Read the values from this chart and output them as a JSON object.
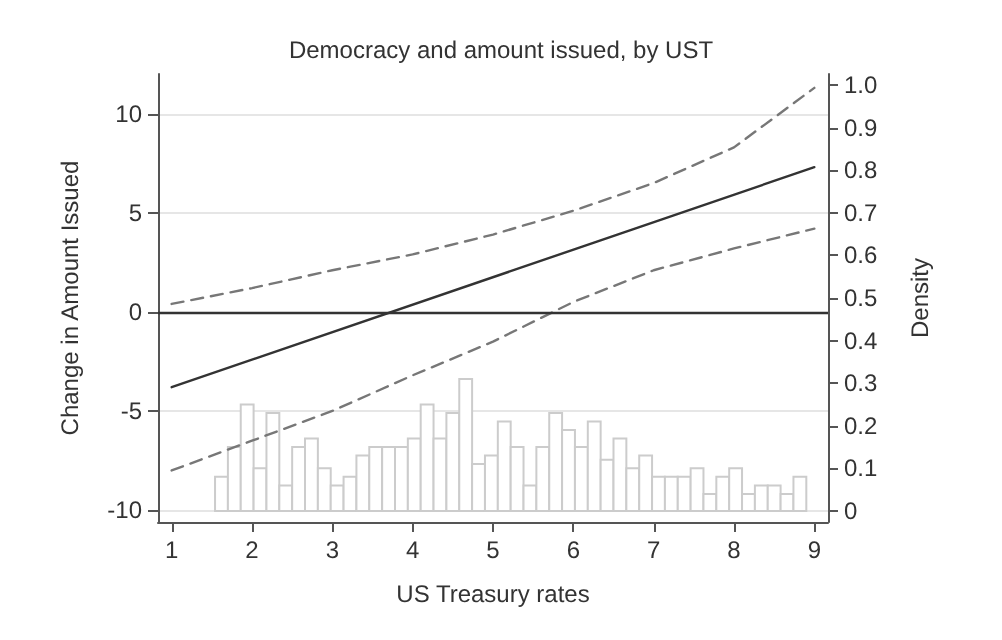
{
  "chart_data": {
    "type": "line",
    "title": "Democracy and amount issued, by UST",
    "xlabel": "US Treasury rates",
    "ylabel": "Change in Amount Issued",
    "y2label": "Density",
    "xlim": [
      0.83,
      9.17
    ],
    "xticks": [
      1,
      2,
      3,
      4,
      5,
      6,
      7,
      8,
      9
    ],
    "ylim": [
      -10.6,
      12
    ],
    "yticks": [
      -10,
      -5,
      0,
      5,
      10
    ],
    "y2lim": [
      -0.026,
      1.026
    ],
    "y2ticks": [
      0,
      0.1,
      0.2,
      0.3,
      0.4,
      0.5,
      0.6,
      0.7,
      0.8,
      0.9,
      {
        "value": 1,
        "label": "1.0"
      }
    ],
    "grid": "y",
    "marker": "none",
    "ref_lines": [
      {
        "axis": "y",
        "value": 0,
        "color": "#333333"
      }
    ],
    "series": [
      {
        "type": "histogram",
        "axis": "y2",
        "color": "#cccccc",
        "bins": [
          1.54,
          1.7,
          1.86,
          2.02,
          2.18,
          2.34,
          2.5,
          2.66,
          2.82,
          2.98,
          3.14,
          3.3,
          3.46,
          3.62,
          3.78,
          3.94,
          4.1,
          4.26,
          4.42,
          4.58,
          4.74,
          4.9,
          5.06,
          5.22,
          5.38,
          5.54,
          5.7,
          5.86,
          6.02,
          6.18,
          6.34,
          6.5,
          6.66,
          6.82,
          6.98,
          7.14,
          7.3,
          7.46,
          7.62,
          7.78,
          7.94,
          8.1,
          8.26,
          8.42,
          8.58,
          8.74,
          8.9
        ],
        "values": [
          0.08,
          0.15,
          0.25,
          0.1,
          0.23,
          0.06,
          0.15,
          0.17,
          0.1,
          0.06,
          0.08,
          0.13,
          0.15,
          0.15,
          0.15,
          0.17,
          0.25,
          0.17,
          0.23,
          0.31,
          0.11,
          0.13,
          0.21,
          0.15,
          0.06,
          0.15,
          0.23,
          0.19,
          0.15,
          0.21,
          0.12,
          0.17,
          0.1,
          0.13,
          0.08,
          0.08,
          0.08,
          0.1,
          0.04,
          0.08,
          0.1,
          0.04,
          0.06,
          0.06,
          0.04,
          0.08
        ]
      },
      {
        "color": "#333333",
        "line_style": "solid",
        "x": [
          1,
          9
        ],
        "values": [
          -3.8,
          7.3
        ]
      },
      {
        "color": "#777777",
        "line_style": "dashed",
        "x": [
          1,
          2,
          3,
          4,
          5,
          6,
          7,
          8,
          9
        ],
        "values": [
          0.4,
          1.2,
          2.1,
          2.9,
          3.9,
          5.1,
          6.5,
          8.3,
          11.3
        ]
      },
      {
        "color": "#777777",
        "line_style": "dashed",
        "x": [
          1,
          2,
          3,
          4,
          5,
          6,
          7,
          8,
          9
        ],
        "values": [
          -8.0,
          -6.5,
          -5.0,
          -3.2,
          -1.5,
          0.5,
          2.1,
          3.2,
          4.2
        ]
      }
    ]
  }
}
